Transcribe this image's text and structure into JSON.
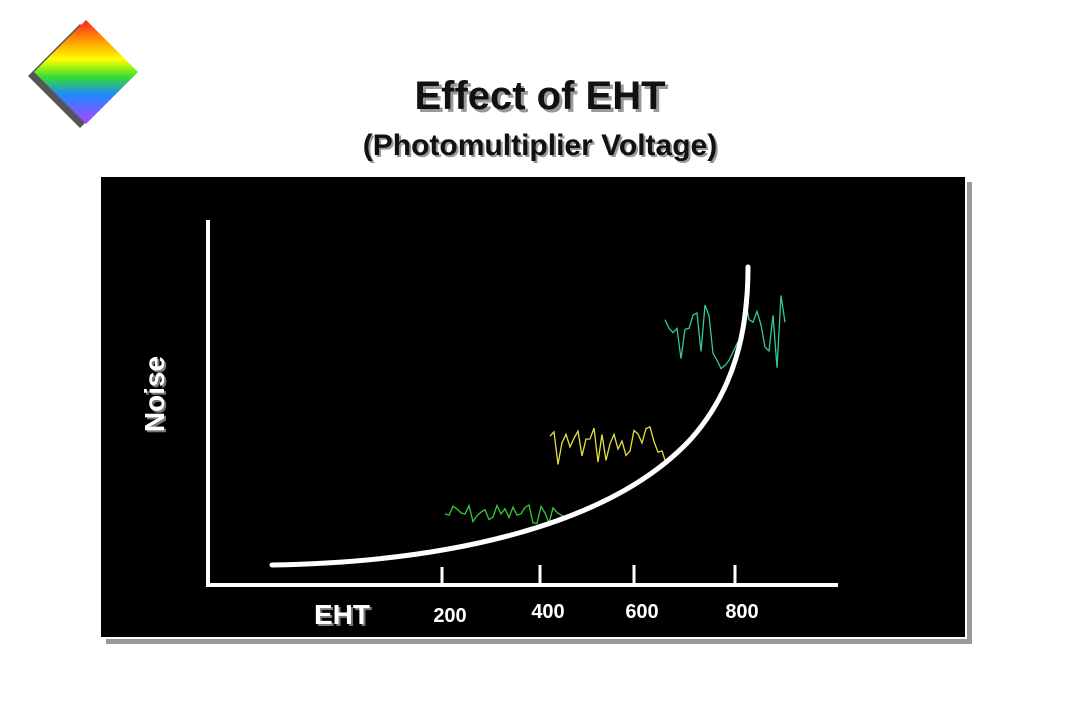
{
  "title": "Effect of EHT",
  "subtitle": "(Photomultiplier Voltage)",
  "diagram": {
    "y_label": "Noise",
    "x_label": "EHT",
    "x_tick_labels": [
      "200",
      "400",
      "600",
      "800"
    ]
  }
}
